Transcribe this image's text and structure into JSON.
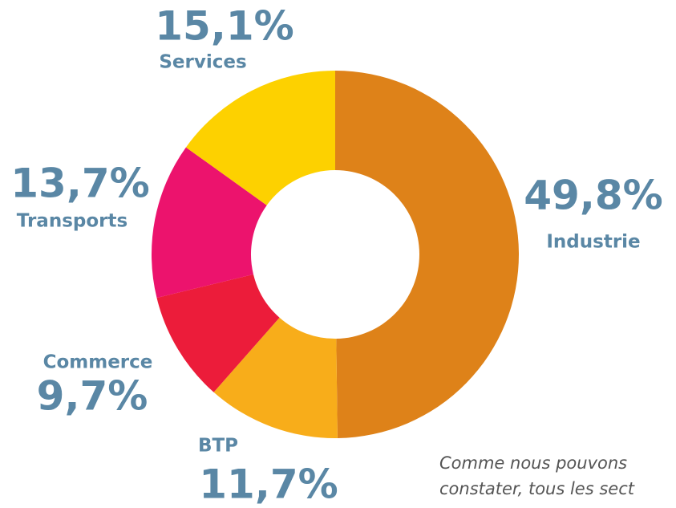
{
  "chart_data": {
    "type": "donut",
    "categories": [
      "Industrie",
      "BTP",
      "Commerce",
      "Transports",
      "Services"
    ],
    "values": [
      49.8,
      11.7,
      9.7,
      13.7,
      15.1
    ],
    "value_labels": [
      "49,8%",
      "11,7%",
      "9,7%",
      "13,7%",
      "15,1%"
    ],
    "colors": [
      "#de8219",
      "#f8ad1a",
      "#ec1c3a",
      "#ec136d",
      "#fdd100"
    ],
    "annotation": [
      "Comme nous pouvons",
      "constater, tous les sect"
    ]
  }
}
